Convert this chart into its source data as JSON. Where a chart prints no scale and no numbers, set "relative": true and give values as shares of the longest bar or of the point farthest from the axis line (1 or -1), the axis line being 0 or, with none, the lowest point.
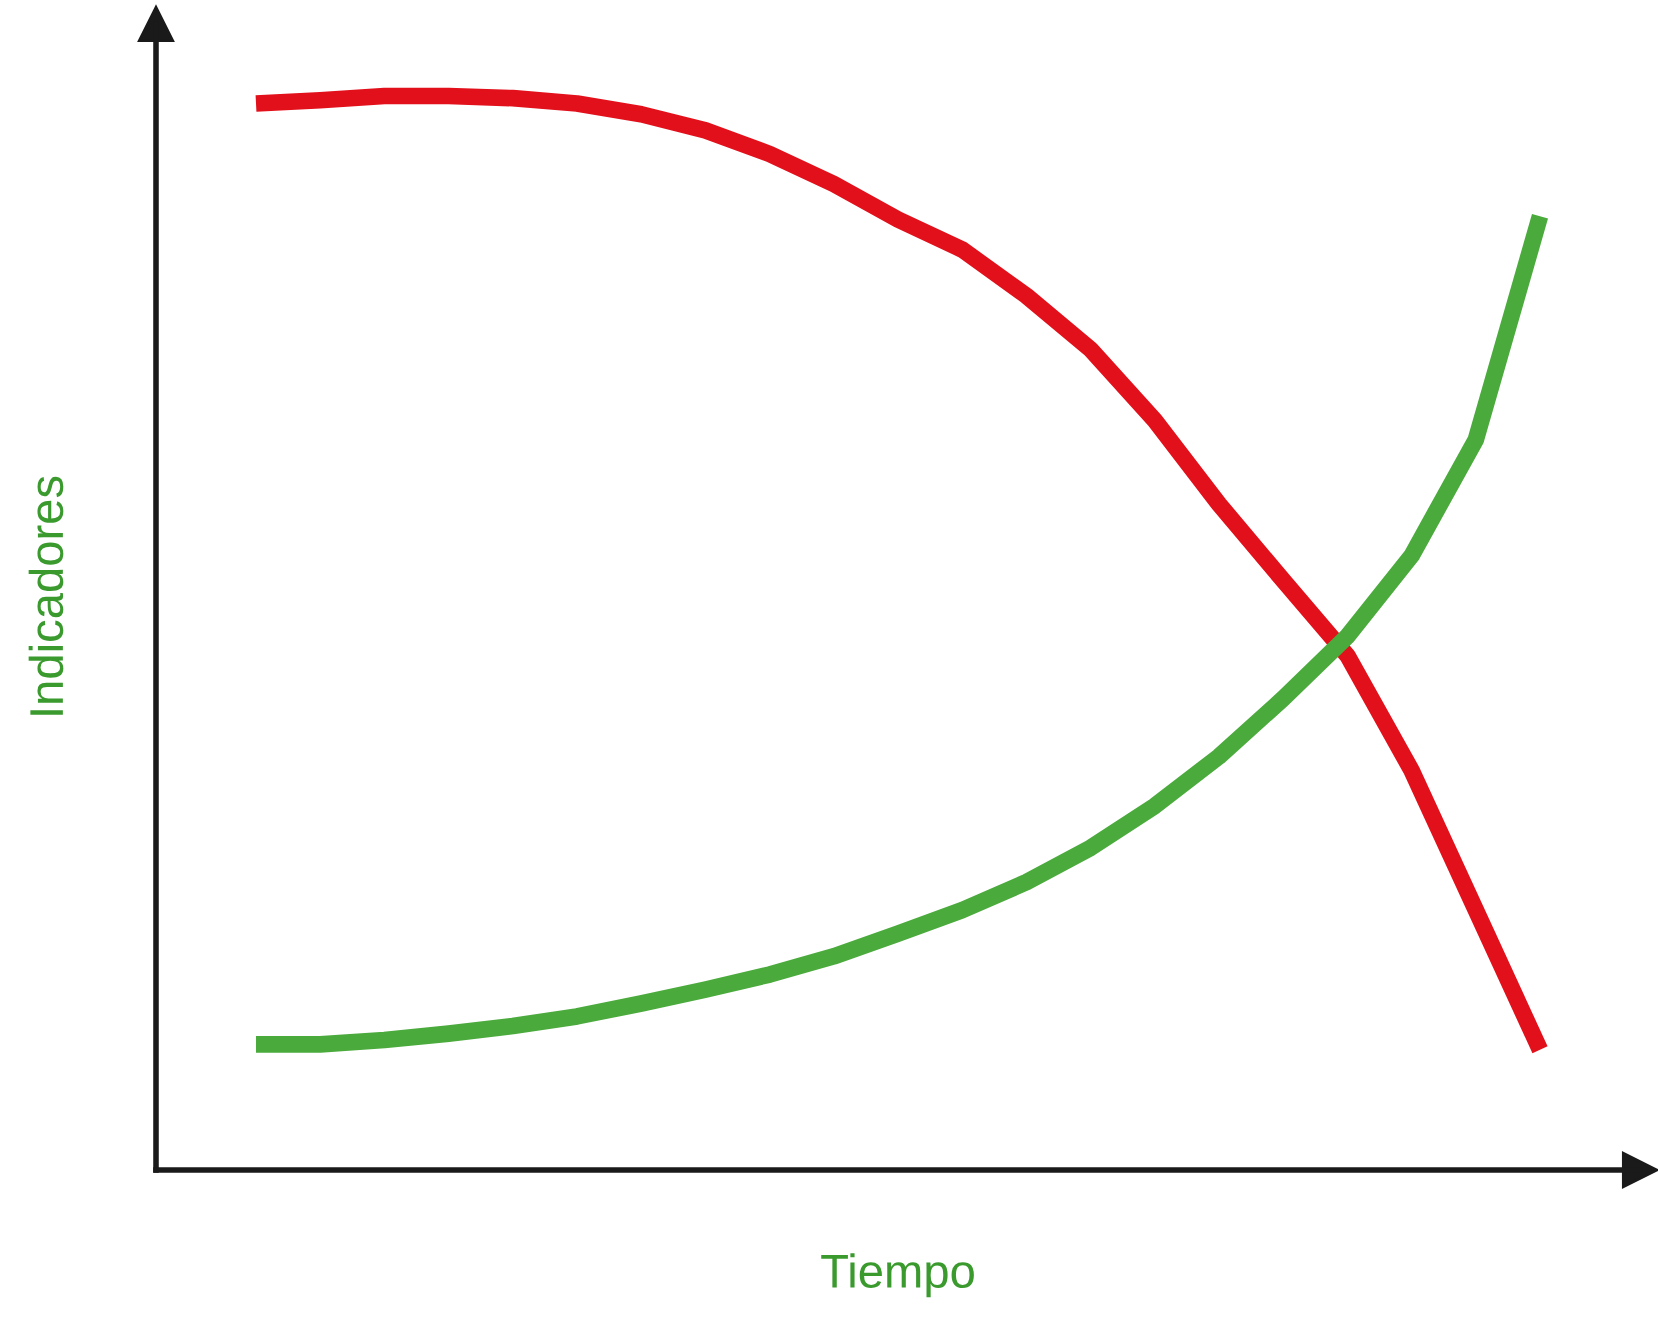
{
  "chart_data": {
    "type": "line",
    "relative": true,
    "xlabel": "Tiempo",
    "ylabel": "Indicadores",
    "tick_labels": false,
    "grid": false,
    "legend": false,
    "marker": "none",
    "line_style": "solid",
    "categories": [
      null,
      null,
      null,
      null,
      null,
      null,
      null,
      null,
      null,
      null,
      null,
      null,
      null,
      null,
      null,
      null,
      null,
      null,
      null,
      null,
      null
    ],
    "series": [
      {
        "color": "#e2101b",
        "values": [
          0.993,
          0.996,
          1.0,
          1.0,
          0.998,
          0.993,
          0.983,
          0.968,
          0.946,
          0.918,
          0.885,
          0.857,
          0.814,
          0.764,
          0.698,
          0.62,
          0.549,
          0.479,
          0.372,
          0.242,
          0.112
        ]
      },
      {
        "color": "#4aaa3c",
        "values": [
          0.117,
          0.117,
          0.121,
          0.127,
          0.134,
          0.143,
          0.155,
          0.168,
          0.182,
          0.199,
          0.22,
          0.242,
          0.268,
          0.3,
          0.339,
          0.385,
          0.439,
          0.497,
          0.572,
          0.68,
          0.888
        ]
      }
    ]
  }
}
